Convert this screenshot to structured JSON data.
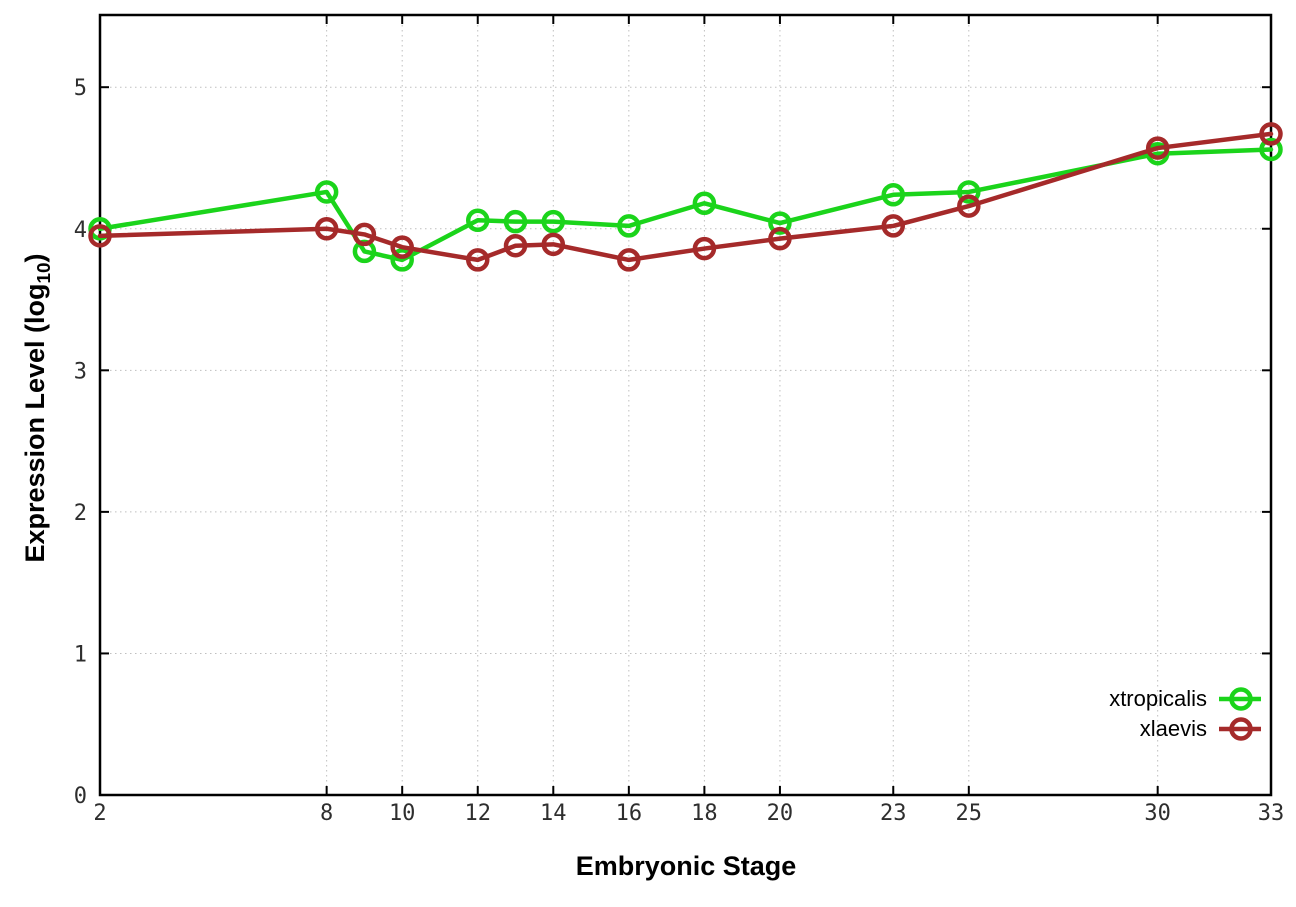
{
  "figure": {
    "background_color": "#ffffff",
    "axis_color": "#000000",
    "grid_color": "#bfbfbf",
    "tick_label_color": "#2e2e2e"
  },
  "chart_data": {
    "type": "line",
    "title": "",
    "xlabel": "Embryonic Stage",
    "ylabel": "Expression Level (log10)",
    "ylabel_parts": {
      "main": "Expression Level (log",
      "sub": "10",
      "end": ")"
    },
    "x_ticks": [
      2,
      8,
      10,
      12,
      14,
      16,
      18,
      20,
      23,
      25,
      30,
      33
    ],
    "y_ticks": [
      0,
      1,
      2,
      3,
      4,
      5
    ],
    "xlim": [
      2,
      33
    ],
    "ylim": [
      0,
      5.51
    ],
    "grid": true,
    "legend_position": "inside bottom-right",
    "x": [
      2,
      8,
      9,
      10,
      12,
      13,
      14,
      16,
      18,
      20,
      23,
      25,
      30,
      33
    ],
    "series": [
      {
        "name": "xtropicalis",
        "color": "#1bd41b",
        "marker": "open-circle",
        "values": [
          4.0,
          4.26,
          3.84,
          3.78,
          4.06,
          4.05,
          4.05,
          4.02,
          4.18,
          4.04,
          4.24,
          4.26,
          4.53,
          4.56
        ]
      },
      {
        "name": "xlaevis",
        "color": "#a52a2a",
        "marker": "open-circle",
        "values": [
          3.95,
          4.0,
          3.96,
          3.87,
          3.78,
          3.88,
          3.89,
          3.78,
          3.86,
          3.93,
          4.02,
          4.16,
          4.57,
          4.67
        ]
      }
    ]
  }
}
